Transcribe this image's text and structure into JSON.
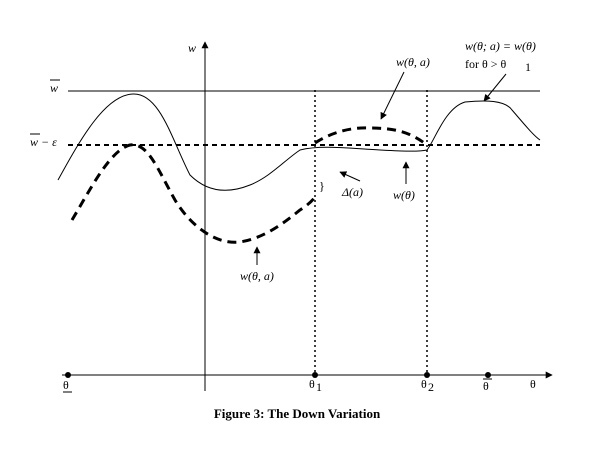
{
  "figure": {
    "caption": "Figure 3:  The Down Variation",
    "axes": {
      "y_label": "w",
      "x_label": "θ"
    },
    "left_labels": {
      "w_bar": "w",
      "w_bar_minus_eps": "w − ε"
    },
    "bottom_labels": {
      "theta_under": "θ",
      "theta_1": "θ",
      "theta_1_sub": "1",
      "theta_2": "θ",
      "theta_2_sub": "2",
      "theta_bar": "θ",
      "theta_x": "θ"
    },
    "annotations": {
      "w_theta_a_upper": "w(θ, a)",
      "w_theta_a_lower": "w(θ, a)",
      "w_theta": "w(θ)",
      "delta_a": "Δ(a)",
      "right_line1": "w(θ; a) = w(θ)",
      "right_line2_prefix": "for θ > θ",
      "right_line2_sub": "1"
    }
  }
}
